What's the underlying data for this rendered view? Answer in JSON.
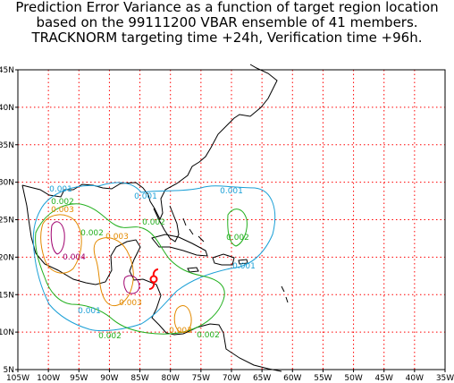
{
  "title": {
    "line1": "Prediction Error Variance as a function of target region location",
    "line2": "based on the 99111200 VBAR ensemble of 41 members.",
    "line3": "TRACKNORM targeting time +24h, Verification time +96h."
  },
  "map": {
    "lon_ticks": [
      "105W",
      "100W",
      "95W",
      "90W",
      "85W",
      "80W",
      "75W",
      "70W",
      "65W",
      "60W",
      "55W",
      "50W",
      "45W",
      "40W",
      "35W"
    ],
    "lat_ticks": [
      "5N",
      "10N",
      "15N",
      "20N",
      "25N",
      "30N",
      "35N",
      "40N",
      "45N"
    ],
    "lon_range": [
      -105,
      -35
    ],
    "lat_range": [
      5,
      45
    ],
    "grid": true,
    "grid_color": "#ff0000",
    "coast_color": "#000000",
    "storm_symbol": "hurricane-icon",
    "storm_color": "#ff0000"
  },
  "contours": {
    "colors": {
      "c001": "#1a9fd6",
      "c002": "#22b01e",
      "c003": "#e38a00",
      "c004": "#a0006e"
    },
    "labels": [
      {
        "text": "0.001",
        "level": "c001"
      },
      {
        "text": "0.002",
        "level": "c002"
      },
      {
        "text": "0.003",
        "level": "c003"
      },
      {
        "text": "0.001",
        "level": "c001"
      },
      {
        "text": "0.001",
        "level": "c001"
      },
      {
        "text": "0.002",
        "level": "c002"
      },
      {
        "text": "0.002",
        "level": "c002"
      },
      {
        "text": "0.003",
        "level": "c003"
      },
      {
        "text": "0.002",
        "level": "c002"
      },
      {
        "text": "0.001",
        "level": "c001"
      },
      {
        "text": "0.004",
        "level": "c004"
      },
      {
        "text": "0.003",
        "level": "c003"
      },
      {
        "text": "0.001",
        "level": "c001"
      },
      {
        "text": "0.002",
        "level": "c002"
      },
      {
        "text": "0.003",
        "level": "c003"
      },
      {
        "text": "0.002",
        "level": "c002"
      }
    ]
  }
}
